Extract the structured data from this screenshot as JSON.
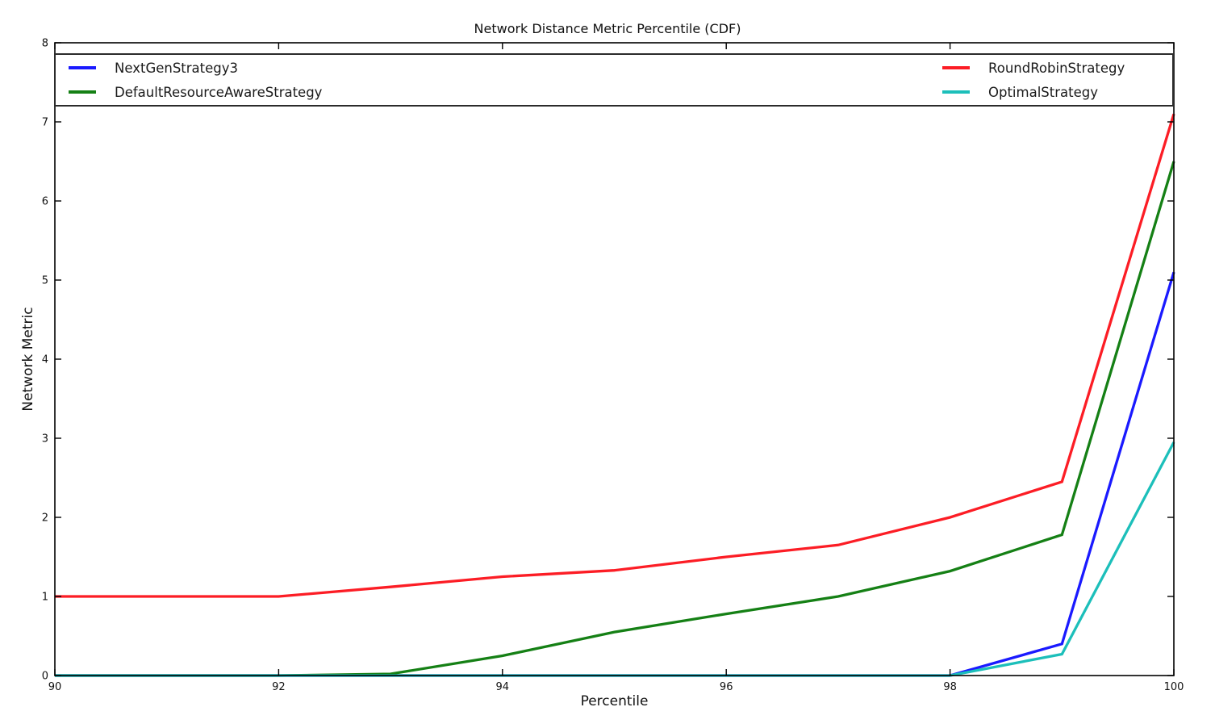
{
  "chart_data": {
    "type": "line",
    "title": "Network Distance Metric Percentile (CDF)",
    "xlabel": "Percentile",
    "ylabel": "Network Metric",
    "xlim": [
      90,
      100
    ],
    "ylim": [
      0,
      8
    ],
    "x_ticks": [
      90,
      92,
      94,
      96,
      98,
      100
    ],
    "y_ticks": [
      0,
      1,
      2,
      3,
      4,
      5,
      6,
      7,
      8
    ],
    "grid": false,
    "legend_layout": "expanded box across plot top, two columns",
    "x": [
      90,
      91,
      92,
      93,
      94,
      95,
      96,
      97,
      98,
      99,
      100
    ],
    "series": [
      {
        "name": "NextGenStrategy3",
        "color": "#1a1aff",
        "values": [
          0,
          0,
          0,
          0,
          0,
          0,
          0,
          0,
          0,
          0.4,
          5.1
        ]
      },
      {
        "name": "DefaultResourceAwareStrategy",
        "color": "#158015",
        "values": [
          0,
          0,
          0,
          0.02,
          0.25,
          0.55,
          0.78,
          1.0,
          1.32,
          1.78,
          6.5
        ]
      },
      {
        "name": "RoundRobinStrategy",
        "color": "#fc1d25",
        "values": [
          1.0,
          1.0,
          1.0,
          1.12,
          1.25,
          1.33,
          1.5,
          1.65,
          2.0,
          2.45,
          7.1
        ]
      },
      {
        "name": "OptimalStrategy",
        "color": "#1cbfba",
        "values": [
          0,
          0,
          0,
          0,
          0,
          0,
          0,
          0,
          0,
          0.27,
          2.95
        ]
      }
    ]
  }
}
